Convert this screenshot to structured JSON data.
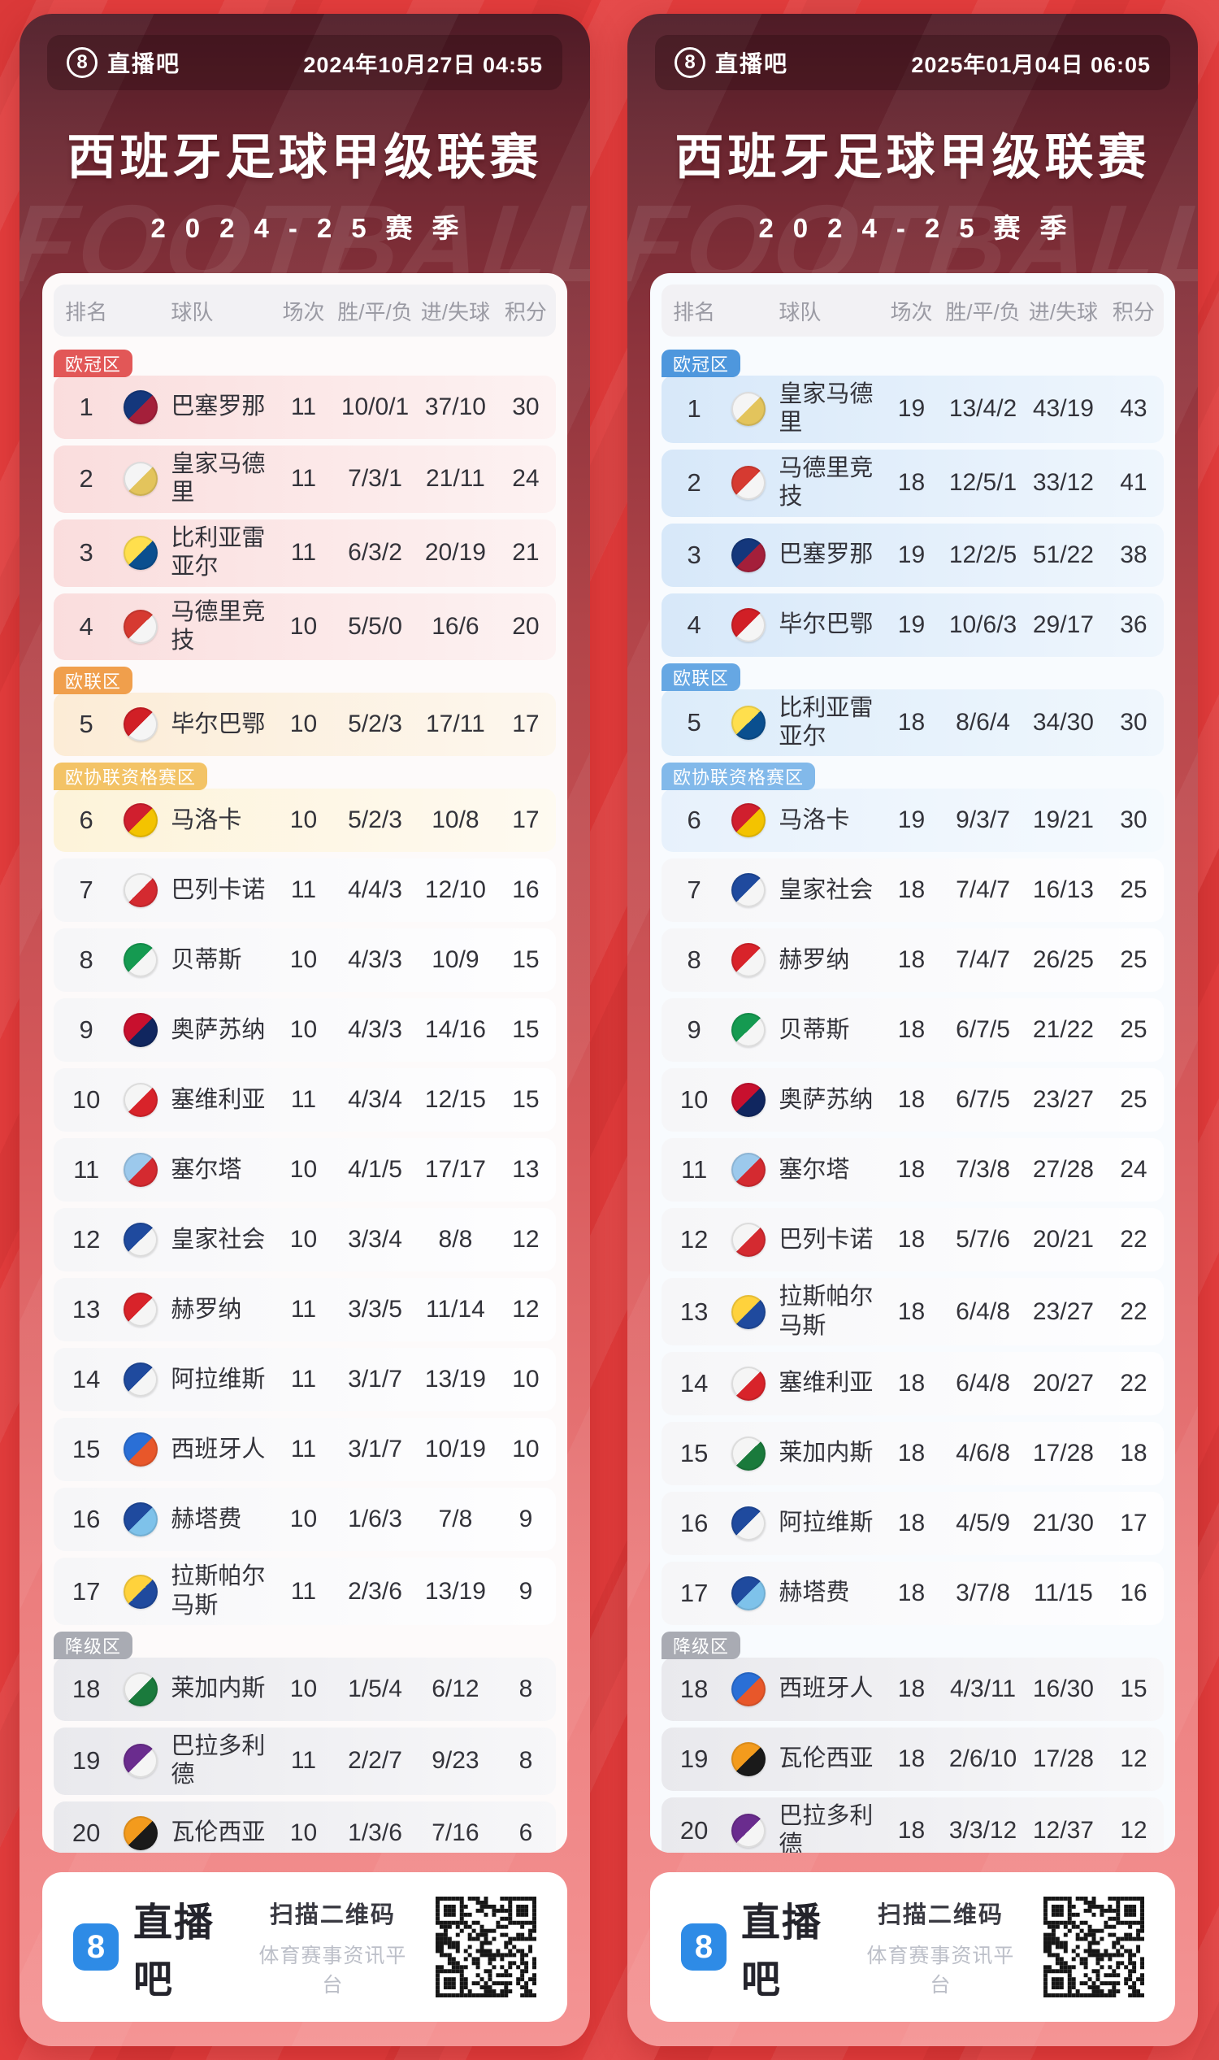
{
  "cards": [
    {
      "theme": "red",
      "brand": "直播吧",
      "brand_badge": "8",
      "datetime": "2024年10月27日 04:55",
      "title": "西班牙足球甲级联赛",
      "season": "2024-25赛季",
      "watermark": "FOOTBALL",
      "columns": [
        "排名",
        "球队",
        "场次",
        "胜/平/负",
        "进/失球",
        "积分"
      ],
      "zone_colors": {
        "cl": "#e25757",
        "el": "#f09f4c",
        "uecl": "#f3c366",
        "rel": "#a9abb3"
      },
      "footer": {
        "scan": "扫描二维码",
        "platform": "体育赛事资讯平台",
        "logo_color": "#2e8be6"
      },
      "rows": [
        {
          "rank": "1",
          "team": "巴塞罗那",
          "played": "11",
          "wdl": "10/0/1",
          "goals": "37/10",
          "points": "30",
          "zone": "cl",
          "zone_label": "欧冠区",
          "icon": [
            "#14377c",
            "#a41f3a"
          ]
        },
        {
          "rank": "2",
          "team": "皇家马德里",
          "played": "11",
          "wdl": "7/3/1",
          "goals": "21/11",
          "points": "24",
          "zone": "cl",
          "icon": [
            "#f5f5f5",
            "#e3c45c"
          ]
        },
        {
          "rank": "3",
          "team": "比利亚雷亚尔",
          "played": "11",
          "wdl": "6/3/2",
          "goals": "20/19",
          "points": "21",
          "zone": "cl",
          "icon": [
            "#ffdf4d",
            "#0a4f8f"
          ]
        },
        {
          "rank": "4",
          "team": "马德里竞技",
          "played": "10",
          "wdl": "5/5/0",
          "goals": "16/6",
          "points": "20",
          "zone": "cl",
          "icon": [
            "#d63a31",
            "#f5f5f5"
          ]
        },
        {
          "rank": "5",
          "team": "毕尔巴鄂",
          "played": "10",
          "wdl": "5/2/3",
          "goals": "17/11",
          "points": "17",
          "zone": "el",
          "zone_label": "欧联区",
          "icon": [
            "#d11f26",
            "#f5f5f5"
          ]
        },
        {
          "rank": "6",
          "team": "马洛卡",
          "played": "10",
          "wdl": "5/2/3",
          "goals": "10/8",
          "points": "17",
          "zone": "uecl",
          "zone_label": "欧协联资格赛区",
          "icon": [
            "#d01f2e",
            "#f3c300"
          ]
        },
        {
          "rank": "7",
          "team": "巴列卡诺",
          "played": "11",
          "wdl": "4/4/3",
          "goals": "12/10",
          "points": "16",
          "zone": "",
          "icon": [
            "#f5f5f5",
            "#d42a30"
          ]
        },
        {
          "rank": "8",
          "team": "贝蒂斯",
          "played": "10",
          "wdl": "4/3/3",
          "goals": "10/9",
          "points": "15",
          "zone": "",
          "icon": [
            "#159a51",
            "#f5f5f5"
          ]
        },
        {
          "rank": "9",
          "team": "奥萨苏纳",
          "played": "10",
          "wdl": "4/3/3",
          "goals": "14/16",
          "points": "15",
          "zone": "",
          "icon": [
            "#c8102e",
            "#10265f"
          ]
        },
        {
          "rank": "10",
          "team": "塞维利亚",
          "played": "11",
          "wdl": "4/3/4",
          "goals": "12/15",
          "points": "15",
          "zone": "",
          "icon": [
            "#f5f5f5",
            "#d8232a"
          ]
        },
        {
          "rank": "11",
          "team": "塞尔塔",
          "played": "10",
          "wdl": "4/1/5",
          "goals": "17/17",
          "points": "13",
          "zone": "",
          "icon": [
            "#9cc9ec",
            "#d42a30"
          ]
        },
        {
          "rank": "12",
          "team": "皇家社会",
          "played": "10",
          "wdl": "3/3/4",
          "goals": "8/8",
          "points": "12",
          "zone": "",
          "icon": [
            "#1f4a9e",
            "#f5f5f5"
          ]
        },
        {
          "rank": "13",
          "team": "赫罗纳",
          "played": "11",
          "wdl": "3/3/5",
          "goals": "11/14",
          "points": "12",
          "zone": "",
          "icon": [
            "#d8232a",
            "#f5f5f5"
          ]
        },
        {
          "rank": "14",
          "team": "阿拉维斯",
          "played": "11",
          "wdl": "3/1/7",
          "goals": "13/19",
          "points": "10",
          "zone": "",
          "icon": [
            "#1f4a9e",
            "#f5f5f5"
          ]
        },
        {
          "rank": "15",
          "team": "西班牙人",
          "played": "11",
          "wdl": "3/1/7",
          "goals": "10/19",
          "points": "10",
          "zone": "",
          "icon": [
            "#2a6fd6",
            "#e8572a"
          ]
        },
        {
          "rank": "16",
          "team": "赫塔费",
          "played": "10",
          "wdl": "1/6/3",
          "goals": "7/8",
          "points": "9",
          "zone": "",
          "icon": [
            "#1f4a9e",
            "#7ec2ea"
          ]
        },
        {
          "rank": "17",
          "team": "拉斯帕尔马斯",
          "played": "11",
          "wdl": "2/3/6",
          "goals": "13/19",
          "points": "9",
          "zone": "",
          "icon": [
            "#ffd23c",
            "#1f4a9e"
          ]
        },
        {
          "rank": "18",
          "team": "莱加内斯",
          "played": "10",
          "wdl": "1/5/4",
          "goals": "6/12",
          "points": "8",
          "zone": "rel",
          "zone_label": "降级区",
          "icon": [
            "#f5f5f5",
            "#1a7a3c"
          ]
        },
        {
          "rank": "19",
          "team": "巴拉多利德",
          "played": "11",
          "wdl": "2/2/7",
          "goals": "9/23",
          "points": "8",
          "zone": "rel",
          "icon": [
            "#6a2c8e",
            "#f5f5f5"
          ]
        },
        {
          "rank": "20",
          "team": "瓦伦西亚",
          "played": "10",
          "wdl": "1/3/6",
          "goals": "7/16",
          "points": "6",
          "zone": "rel",
          "icon": [
            "#f39b1d",
            "#1a1a1a"
          ]
        }
      ]
    },
    {
      "theme": "blue",
      "brand": "直播吧",
      "brand_badge": "8",
      "datetime": "2025年01月04日 06:05",
      "title": "西班牙足球甲级联赛",
      "season": "2024-25赛季",
      "watermark": "FOOTBALL",
      "columns": [
        "排名",
        "球队",
        "场次",
        "胜/平/负",
        "进/失球",
        "积分"
      ],
      "zone_colors": {
        "cl": "#4e97dd",
        "el": "#66a7e3",
        "uecl": "#82b9ea",
        "rel": "#a9abb3"
      },
      "footer": {
        "scan": "扫描二维码",
        "platform": "体育赛事资讯平台",
        "logo_color": "#2e8be6"
      },
      "rows": [
        {
          "rank": "1",
          "team": "皇家马德里",
          "played": "19",
          "wdl": "13/4/2",
          "goals": "43/19",
          "points": "43",
          "zone": "cl",
          "zone_label": "欧冠区",
          "icon": [
            "#f5f5f5",
            "#e3c45c"
          ]
        },
        {
          "rank": "2",
          "team": "马德里竞技",
          "played": "18",
          "wdl": "12/5/1",
          "goals": "33/12",
          "points": "41",
          "zone": "cl",
          "icon": [
            "#d63a31",
            "#f5f5f5"
          ]
        },
        {
          "rank": "3",
          "team": "巴塞罗那",
          "played": "19",
          "wdl": "12/2/5",
          "goals": "51/22",
          "points": "38",
          "zone": "cl",
          "icon": [
            "#14377c",
            "#a41f3a"
          ]
        },
        {
          "rank": "4",
          "team": "毕尔巴鄂",
          "played": "19",
          "wdl": "10/6/3",
          "goals": "29/17",
          "points": "36",
          "zone": "cl",
          "icon": [
            "#d11f26",
            "#f5f5f5"
          ]
        },
        {
          "rank": "5",
          "team": "比利亚雷亚尔",
          "played": "18",
          "wdl": "8/6/4",
          "goals": "34/30",
          "points": "30",
          "zone": "el",
          "zone_label": "欧联区",
          "icon": [
            "#ffdf4d",
            "#0a4f8f"
          ]
        },
        {
          "rank": "6",
          "team": "马洛卡",
          "played": "19",
          "wdl": "9/3/7",
          "goals": "19/21",
          "points": "30",
          "zone": "uecl",
          "zone_label": "欧协联资格赛区",
          "icon": [
            "#d01f2e",
            "#f3c300"
          ]
        },
        {
          "rank": "7",
          "team": "皇家社会",
          "played": "18",
          "wdl": "7/4/7",
          "goals": "16/13",
          "points": "25",
          "zone": "",
          "icon": [
            "#1f4a9e",
            "#f5f5f5"
          ]
        },
        {
          "rank": "8",
          "team": "赫罗纳",
          "played": "18",
          "wdl": "7/4/7",
          "goals": "26/25",
          "points": "25",
          "zone": "",
          "icon": [
            "#d8232a",
            "#f5f5f5"
          ]
        },
        {
          "rank": "9",
          "team": "贝蒂斯",
          "played": "18",
          "wdl": "6/7/5",
          "goals": "21/22",
          "points": "25",
          "zone": "",
          "icon": [
            "#159a51",
            "#f5f5f5"
          ]
        },
        {
          "rank": "10",
          "team": "奥萨苏纳",
          "played": "18",
          "wdl": "6/7/5",
          "goals": "23/27",
          "points": "25",
          "zone": "",
          "icon": [
            "#c8102e",
            "#10265f"
          ]
        },
        {
          "rank": "11",
          "team": "塞尔塔",
          "played": "18",
          "wdl": "7/3/8",
          "goals": "27/28",
          "points": "24",
          "zone": "",
          "icon": [
            "#9cc9ec",
            "#d42a30"
          ]
        },
        {
          "rank": "12",
          "team": "巴列卡诺",
          "played": "18",
          "wdl": "5/7/6",
          "goals": "20/21",
          "points": "22",
          "zone": "",
          "icon": [
            "#f5f5f5",
            "#d42a30"
          ]
        },
        {
          "rank": "13",
          "team": "拉斯帕尔马斯",
          "played": "18",
          "wdl": "6/4/8",
          "goals": "23/27",
          "points": "22",
          "zone": "",
          "icon": [
            "#ffd23c",
            "#1f4a9e"
          ]
        },
        {
          "rank": "14",
          "team": "塞维利亚",
          "played": "18",
          "wdl": "6/4/8",
          "goals": "20/27",
          "points": "22",
          "zone": "",
          "icon": [
            "#f5f5f5",
            "#d8232a"
          ]
        },
        {
          "rank": "15",
          "team": "莱加内斯",
          "played": "18",
          "wdl": "4/6/8",
          "goals": "17/28",
          "points": "18",
          "zone": "",
          "icon": [
            "#f5f5f5",
            "#1a7a3c"
          ]
        },
        {
          "rank": "16",
          "team": "阿拉维斯",
          "played": "18",
          "wdl": "4/5/9",
          "goals": "21/30",
          "points": "17",
          "zone": "",
          "icon": [
            "#1f4a9e",
            "#f5f5f5"
          ]
        },
        {
          "rank": "17",
          "team": "赫塔费",
          "played": "18",
          "wdl": "3/7/8",
          "goals": "11/15",
          "points": "16",
          "zone": "",
          "icon": [
            "#1f4a9e",
            "#7ec2ea"
          ]
        },
        {
          "rank": "18",
          "team": "西班牙人",
          "played": "18",
          "wdl": "4/3/11",
          "goals": "16/30",
          "points": "15",
          "zone": "rel",
          "zone_label": "降级区",
          "icon": [
            "#2a6fd6",
            "#e8572a"
          ]
        },
        {
          "rank": "19",
          "team": "瓦伦西亚",
          "played": "18",
          "wdl": "2/6/10",
          "goals": "17/28",
          "points": "12",
          "zone": "rel",
          "icon": [
            "#f39b1d",
            "#1a1a1a"
          ]
        },
        {
          "rank": "20",
          "team": "巴拉多利德",
          "played": "18",
          "wdl": "3/3/12",
          "goals": "12/37",
          "points": "12",
          "zone": "rel",
          "icon": [
            "#6a2c8e",
            "#f5f5f5"
          ]
        }
      ]
    }
  ]
}
